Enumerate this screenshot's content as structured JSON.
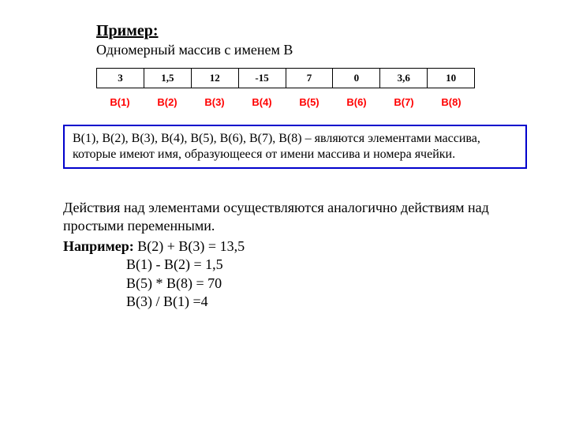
{
  "title": "Пример:",
  "subtitle": "Одномерный массив с именем В",
  "array": {
    "values": [
      "3",
      "1,5",
      "12",
      "-15",
      "7",
      "0",
      "3,6",
      "10"
    ],
    "labels": [
      "B(1)",
      "B(2)",
      "B(3)",
      "B(4)",
      "B(5)",
      "B(6)",
      "B(7)",
      "B(8)"
    ],
    "cell_count": 8,
    "border_color": "#000000",
    "label_color": "#ff0000",
    "value_fontsize": 13,
    "label_fontsize": 13
  },
  "callout": {
    "text": "В(1), В(2), В(3), В(4), В(5), В(6), В(7), В(8) – являются элементами массива, которые имеют имя, образующееся от имени массива и номера ячейки.",
    "border_color": "#0000cc"
  },
  "actions": {
    "intro": "Действия над элементами осуществляются аналогично действиям над простыми переменными.",
    "example_label": "Например: ",
    "equations": [
      "В(2) + В(3) = 13,5",
      "В(1) - В(2) = 1,5",
      "В(5) * В(8) = 70",
      "В(3) / В(1) =4"
    ]
  },
  "colors": {
    "background": "#ffffff",
    "text": "#000000"
  }
}
